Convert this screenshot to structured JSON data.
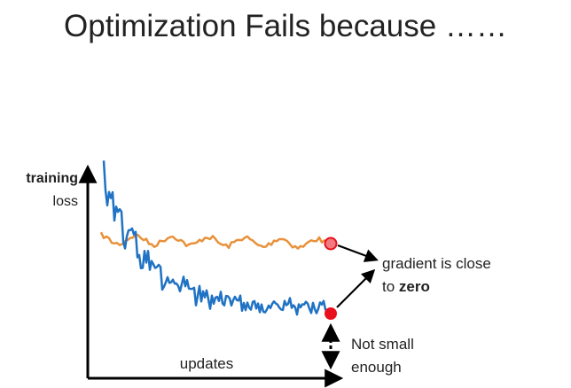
{
  "slide": {
    "title": "Optimization Fails because ……"
  },
  "axes": {
    "y_label_bold": "training",
    "y_label": "loss",
    "x_label": "updates"
  },
  "annotations": {
    "gradient_line1": "gradient is close",
    "gradient_line2_prefix": "to ",
    "gradient_line2_bold": "zero",
    "gap_line1": "Not small",
    "gap_line2": "enough"
  },
  "colors": {
    "orange_curve": "#E8913A",
    "blue_curve": "#1F72C4",
    "point_red": "#E8101A",
    "point_pink": "#F07A80",
    "axis": "#000000"
  }
}
